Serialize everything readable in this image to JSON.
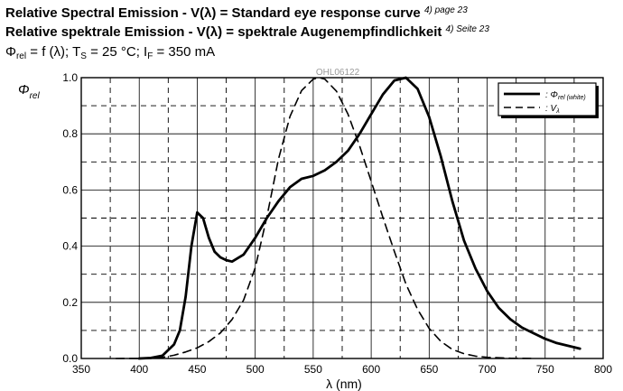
{
  "header": {
    "line1": "Relative Spectral Emission - V(λ) = Standard eye response curve",
    "line1_ref": "4) page 23",
    "line2": "Relative spektrale Emission - V(λ) = spektrale Augenempfindlichkeit",
    "line2_ref": "4) Seite 23",
    "cond_phi": "Φ",
    "cond_phi_sub": "rel",
    "cond_mid": " = f (λ); T",
    "cond_ts_sub": "S",
    "cond_mid2": " = 25 °C; I",
    "cond_if_sub": "F",
    "cond_end": " = 350 mA"
  },
  "chart_data": {
    "type": "line",
    "title": "",
    "code_label": "OHL06122",
    "ylabel": "Φ",
    "ylabel_sub": "rel",
    "xlabel": "λ (nm)",
    "xlim": [
      350,
      800
    ],
    "ylim": [
      0,
      1.0
    ],
    "x_ticks": [
      "350",
      "400",
      "450",
      "500",
      "550",
      "600",
      "650",
      "700",
      "750",
      "800"
    ],
    "y_ticks": [
      "0.0",
      "0.2",
      "0.4",
      "0.6",
      "0.8",
      "1.0"
    ],
    "grid": true,
    "legend_position": "top-right",
    "series": [
      {
        "name": "Φrel (white)",
        "name_main": ": Φ",
        "name_sub": "rel (white)",
        "style": "solid",
        "x": [
          400,
          410,
          420,
          430,
          435,
          440,
          445,
          450,
          455,
          460,
          465,
          470,
          475,
          480,
          490,
          500,
          510,
          520,
          530,
          540,
          550,
          560,
          570,
          580,
          590,
          600,
          610,
          620,
          630,
          640,
          650,
          660,
          670,
          680,
          690,
          700,
          710,
          720,
          730,
          740,
          750,
          760,
          770,
          780
        ],
        "y": [
          0.0,
          0.002,
          0.01,
          0.05,
          0.1,
          0.22,
          0.4,
          0.52,
          0.5,
          0.43,
          0.38,
          0.36,
          0.35,
          0.345,
          0.37,
          0.43,
          0.5,
          0.56,
          0.61,
          0.64,
          0.65,
          0.67,
          0.7,
          0.74,
          0.8,
          0.87,
          0.94,
          0.99,
          1.0,
          0.96,
          0.86,
          0.72,
          0.56,
          0.42,
          0.32,
          0.24,
          0.18,
          0.14,
          0.11,
          0.09,
          0.07,
          0.055,
          0.045,
          0.035
        ]
      },
      {
        "name": "Vλ",
        "name_main": ": V",
        "name_sub": "λ",
        "style": "dashed",
        "x": [
          380,
          400,
          410,
          420,
          430,
          440,
          450,
          460,
          470,
          480,
          490,
          500,
          510,
          520,
          530,
          540,
          550,
          555,
          560,
          570,
          580,
          590,
          600,
          610,
          620,
          630,
          640,
          650,
          660,
          670,
          680,
          690,
          700,
          720,
          740
        ],
        "y": [
          0.0,
          0.0004,
          0.0012,
          0.004,
          0.0116,
          0.023,
          0.038,
          0.06,
          0.091,
          0.139,
          0.208,
          0.323,
          0.503,
          0.71,
          0.862,
          0.954,
          0.995,
          1.0,
          0.995,
          0.952,
          0.87,
          0.757,
          0.631,
          0.503,
          0.381,
          0.265,
          0.175,
          0.107,
          0.061,
          0.032,
          0.017,
          0.0082,
          0.0041,
          0.001,
          0.0002
        ]
      }
    ]
  }
}
